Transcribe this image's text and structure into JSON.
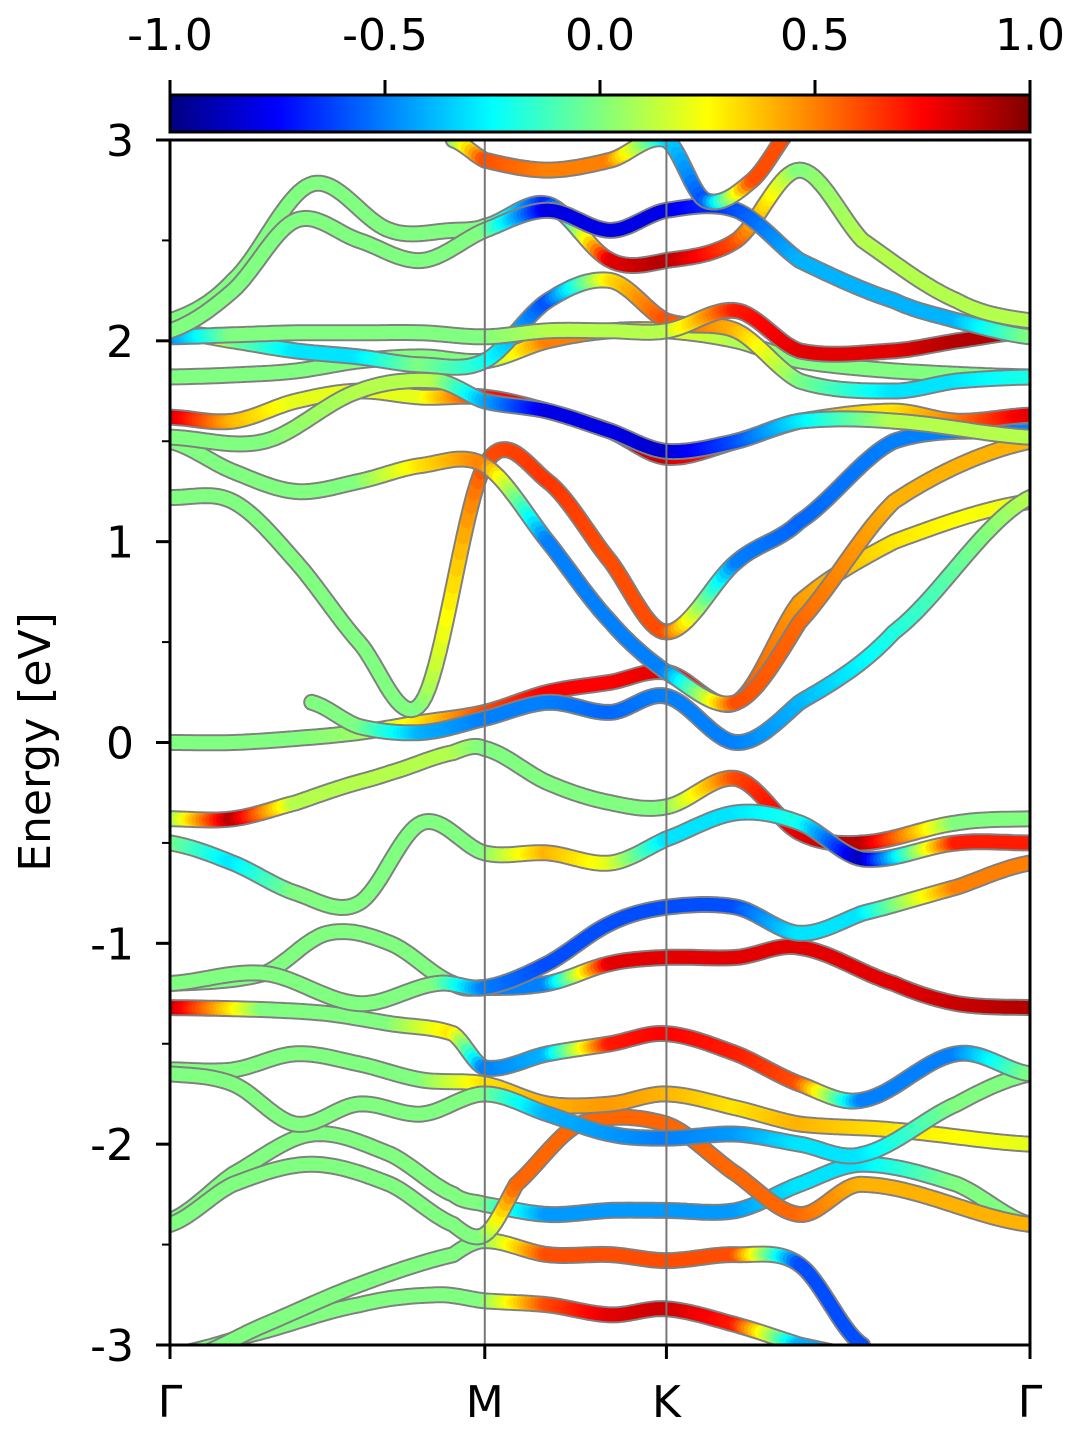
{
  "chart_data": {
    "type": "line",
    "ylabel": "Energy [eV]",
    "ylim": [
      -3,
      3
    ],
    "ytick_labels": [
      "3",
      "2",
      "1",
      "0",
      "-1",
      "-2",
      "-3"
    ],
    "yticks": [
      3,
      2,
      1,
      0,
      -1,
      -2,
      -3
    ],
    "x_kpoints": [
      {
        "label": "Γ",
        "pos": 0.0
      },
      {
        "label": "M",
        "pos": 1.0
      },
      {
        "label": "K",
        "pos": 1.577
      },
      {
        "label": "Γ",
        "pos": 2.732
      }
    ],
    "colorbar": {
      "range": [
        -1.0,
        1.0
      ],
      "tick_labels": [
        "-1.0",
        "-0.5",
        "0.0",
        "0.5",
        "1.0"
      ],
      "ticks": [
        -1.0,
        -0.5,
        0.0,
        0.5,
        1.0
      ],
      "colormap": "jet"
    },
    "grid": false,
    "bands": [
      {
        "x": [
          0,
          0.25,
          0.6,
          0.85,
          1.0,
          1.2,
          1.4,
          1.577,
          1.8,
          2.0,
          2.3,
          2.732
        ],
        "y": [
          -3.05,
          -2.95,
          -2.8,
          -2.75,
          -2.78,
          -2.8,
          -2.85,
          -2.82,
          -2.9,
          -3.0,
          -3.1,
          -3.2
        ],
        "c": [
          0.0,
          0.0,
          0.0,
          0.0,
          0.0,
          0.6,
          0.8,
          0.85,
          0.7,
          -0.4,
          -0.5,
          -0.5
        ]
      },
      {
        "x": [
          0,
          0.3,
          0.6,
          0.9,
          1.0,
          1.2,
          1.4,
          1.577,
          1.8,
          2.0,
          2.2
        ],
        "y": [
          -3.1,
          -2.9,
          -2.7,
          -2.55,
          -2.48,
          -2.55,
          -2.55,
          -2.58,
          -2.55,
          -2.6,
          -3.0
        ],
        "c": [
          0.0,
          0.0,
          0.0,
          0.0,
          0.0,
          0.6,
          0.6,
          0.6,
          0.6,
          -0.6,
          -0.6
        ]
      },
      {
        "x": [
          0,
          0.2,
          0.45,
          0.7,
          0.9,
          1.0,
          1.2,
          1.4,
          1.577,
          1.8,
          2.0,
          2.2,
          2.5,
          2.732
        ],
        "y": [
          -2.38,
          -2.15,
          -1.95,
          -2.05,
          -2.25,
          -2.3,
          -2.35,
          -2.33,
          -2.33,
          -2.33,
          -2.2,
          -2.1,
          -2.2,
          -2.4
        ],
        "c": [
          0.0,
          0.0,
          0.0,
          0.0,
          0.0,
          0.0,
          -0.45,
          -0.45,
          -0.45,
          -0.45,
          -0.3,
          -0.3,
          0.0,
          0.0
        ]
      },
      {
        "x": [
          0,
          0.2,
          0.45,
          0.7,
          0.9,
          1.0,
          1.1,
          1.3,
          1.577,
          1.8,
          2.0,
          2.2,
          2.732
        ],
        "y": [
          -2.4,
          -2.2,
          -2.1,
          -2.2,
          -2.4,
          -2.45,
          -2.2,
          -1.9,
          -1.9,
          -2.15,
          -2.35,
          -2.2,
          -2.4
        ],
        "c": [
          0.0,
          0.0,
          0.0,
          0.0,
          0.0,
          0.0,
          0.55,
          0.55,
          0.55,
          0.55,
          0.55,
          0.4,
          0.4
        ]
      },
      {
        "x": [
          0,
          0.2,
          0.4,
          0.6,
          0.8,
          1.0,
          1.2,
          1.4,
          1.577,
          1.8,
          2.0,
          2.3,
          2.732
        ],
        "y": [
          -1.63,
          -1.63,
          -1.55,
          -1.6,
          -1.68,
          -1.7,
          -1.8,
          -1.8,
          -1.75,
          -1.82,
          -1.9,
          -1.93,
          -2.0
        ],
        "c": [
          0.0,
          0.0,
          0.0,
          0.0,
          0.0,
          0.3,
          0.4,
          0.45,
          0.4,
          0.3,
          0.4,
          0.3,
          0.2
        ]
      },
      {
        "x": [
          0,
          0.2,
          0.4,
          0.6,
          0.8,
          1.0,
          1.2,
          1.4,
          1.577,
          1.8,
          2.0,
          2.2,
          2.5,
          2.732
        ],
        "y": [
          -1.65,
          -1.7,
          -1.9,
          -1.8,
          -1.85,
          -1.75,
          -1.85,
          -1.95,
          -1.97,
          -1.95,
          -2.0,
          -2.05,
          -1.8,
          -1.65
        ],
        "c": [
          0.0,
          0.0,
          0.0,
          0.0,
          0.0,
          0.0,
          -0.4,
          -0.45,
          -0.5,
          -0.45,
          -0.3,
          -0.3,
          0.0,
          0.0
        ]
      },
      {
        "x": [
          0,
          0.3,
          0.5,
          0.7,
          0.9,
          1.0,
          1.2,
          1.4,
          1.577,
          1.8,
          2.0,
          2.3,
          2.5,
          2.732
        ],
        "y": [
          -1.2,
          -1.15,
          -0.95,
          -1.0,
          -1.2,
          -1.22,
          -1.2,
          -1.1,
          -1.07,
          -1.07,
          -1.02,
          -1.2,
          -1.3,
          -1.32
        ],
        "c": [
          0.0,
          0.0,
          0.0,
          0.0,
          0.0,
          -0.5,
          -0.5,
          0.8,
          0.8,
          0.8,
          0.8,
          0.8,
          0.85,
          0.9
        ]
      },
      {
        "x": [
          0,
          0.3,
          0.5,
          0.7,
          0.9,
          1.0,
          1.2,
          1.4,
          1.577,
          1.8,
          2.0,
          2.2,
          2.5,
          2.732
        ],
        "y": [
          -1.32,
          -1.33,
          -1.35,
          -1.4,
          -1.45,
          -1.62,
          -1.55,
          -1.5,
          -1.45,
          -1.55,
          -1.7,
          -1.78,
          -1.55,
          -1.65
        ],
        "c": [
          0.9,
          0.0,
          0.0,
          0.0,
          0.3,
          -0.5,
          -0.4,
          0.7,
          0.75,
          0.7,
          0.6,
          -0.5,
          -0.5,
          0.0
        ]
      },
      {
        "x": [
          0,
          0.2,
          0.4,
          0.55,
          0.7,
          0.9,
          1.0,
          1.2,
          1.4,
          1.577,
          1.8,
          2.0,
          2.2,
          2.5,
          2.732
        ],
        "y": [
          -0.38,
          -0.38,
          -0.3,
          -0.22,
          -0.15,
          -0.05,
          -0.03,
          -0.2,
          -0.3,
          -0.32,
          -0.18,
          -0.45,
          -0.5,
          -0.4,
          -0.38
        ],
        "c": [
          0.0,
          0.9,
          0.1,
          0.1,
          0.1,
          0.1,
          0.0,
          0.0,
          0.0,
          0.0,
          0.6,
          0.8,
          0.9,
          0.0,
          0.0
        ]
      },
      {
        "x": [
          0,
          0.2,
          0.4,
          0.6,
          0.8,
          1.0,
          1.2,
          1.4,
          1.577,
          1.8,
          2.0,
          2.2,
          2.5,
          2.732
        ],
        "y": [
          -0.5,
          -0.6,
          -0.75,
          -0.8,
          -0.4,
          -0.55,
          -0.55,
          -0.6,
          -0.48,
          -0.35,
          -0.4,
          -0.58,
          -0.5,
          -0.5
        ],
        "c": [
          0.0,
          -0.3,
          0.0,
          0.0,
          0.0,
          0.0,
          0.4,
          0.2,
          -0.3,
          -0.3,
          -0.2,
          -0.9,
          0.7,
          0.7
        ]
      },
      {
        "x": [
          0,
          0.3,
          0.6,
          0.85,
          1.0,
          1.2,
          1.4,
          1.577,
          1.8,
          2.0,
          2.2,
          2.5,
          2.732
        ],
        "y": [
          -1.2,
          -1.15,
          -1.3,
          -1.2,
          -1.22,
          -1.1,
          -0.9,
          -0.82,
          -0.82,
          -0.95,
          -0.85,
          -0.72,
          -0.6
        ],
        "c": [
          0.0,
          0.0,
          0.0,
          0.0,
          -0.5,
          -0.6,
          -0.6,
          -0.6,
          -0.6,
          -0.3,
          -0.3,
          0.5,
          0.5
        ]
      },
      {
        "x": [
          0,
          0.2,
          0.4,
          0.6,
          0.8,
          1.0,
          1.2,
          1.4,
          1.577,
          1.8,
          2.0,
          2.3,
          2.732
        ],
        "y": [
          0.0,
          0.0,
          0.02,
          0.05,
          0.1,
          0.15,
          0.25,
          0.3,
          0.35,
          0.2,
          0.7,
          1.0,
          1.2
        ],
        "c": [
          0.0,
          0.0,
          0.0,
          0.05,
          0.3,
          0.6,
          0.75,
          0.75,
          0.8,
          0.6,
          0.45,
          0.3,
          0.2
        ]
      },
      {
        "x": [
          0.45,
          0.6,
          0.8,
          1.0,
          1.2,
          1.4,
          1.577,
          1.8,
          2.0,
          2.3,
          2.732
        ],
        "y": [
          0.2,
          0.08,
          0.05,
          0.12,
          0.2,
          0.15,
          0.23,
          0.0,
          0.2,
          0.55,
          1.22
        ],
        "c": [
          0.0,
          0.0,
          -0.4,
          -0.5,
          -0.5,
          -0.55,
          -0.5,
          -0.5,
          -0.4,
          -0.2,
          0.1
        ]
      },
      {
        "x": [
          0,
          0.2,
          0.4,
          0.6,
          0.8,
          1.0,
          1.2,
          1.4,
          1.577,
          1.8,
          2.0,
          2.3,
          2.732
        ],
        "y": [
          1.22,
          1.2,
          0.9,
          0.5,
          0.2,
          1.38,
          1.3,
          0.9,
          0.55,
          0.9,
          1.1,
          1.5,
          1.55
        ],
        "c": [
          0.0,
          0.0,
          0.0,
          0.0,
          0.0,
          0.6,
          0.65,
          0.6,
          0.6,
          -0.5,
          -0.55,
          -0.5,
          -0.5
        ]
      },
      {
        "x": [
          0,
          0.2,
          0.4,
          0.6,
          0.8,
          1.0,
          1.2,
          1.4,
          1.577,
          1.8,
          2.0,
          2.3,
          2.732
        ],
        "y": [
          1.5,
          1.35,
          1.25,
          1.3,
          1.38,
          1.38,
          1.0,
          0.6,
          0.35,
          0.2,
          0.6,
          1.2,
          1.5
        ],
        "c": [
          0.0,
          0.0,
          0.0,
          0.0,
          0.3,
          0.5,
          -0.5,
          -0.5,
          -0.5,
          0.6,
          0.55,
          0.4,
          0.4
        ]
      },
      {
        "x": [
          0,
          0.2,
          0.4,
          0.6,
          0.8,
          1.0,
          1.2,
          1.4,
          1.577,
          1.8,
          2.0,
          2.3,
          2.5,
          2.732
        ],
        "y": [
          1.62,
          1.6,
          1.7,
          1.75,
          1.72,
          1.72,
          1.65,
          1.55,
          1.42,
          1.5,
          1.6,
          1.65,
          1.6,
          1.63
        ],
        "c": [
          0.85,
          0.4,
          0.2,
          0.2,
          0.2,
          0.7,
          0.8,
          0.85,
          0.85,
          0.6,
          0.4,
          0.3,
          0.5,
          0.8
        ]
      },
      {
        "x": [
          0,
          0.3,
          0.6,
          0.85,
          1.0,
          1.2,
          1.4,
          1.577,
          1.8,
          2.0,
          2.3,
          2.732
        ],
        "y": [
          1.52,
          1.5,
          1.75,
          1.8,
          1.7,
          1.65,
          1.55,
          1.45,
          1.5,
          1.6,
          1.6,
          1.52
        ],
        "c": [
          0.0,
          0.0,
          0.1,
          0.1,
          -0.4,
          -0.8,
          -0.8,
          -0.85,
          -0.6,
          -0.3,
          0.1,
          0.1
        ]
      },
      {
        "x": [
          0,
          0.2,
          0.4,
          0.6,
          0.8,
          1.0,
          1.2,
          1.4,
          1.577,
          1.8,
          2.0,
          2.3,
          2.732
        ],
        "y": [
          1.82,
          1.83,
          1.85,
          1.9,
          1.92,
          1.9,
          2.0,
          2.05,
          2.05,
          2.0,
          1.9,
          1.85,
          1.82
        ],
        "c": [
          0.0,
          0.0,
          0.0,
          0.0,
          0.0,
          0.0,
          0.5,
          0.5,
          0.2,
          0.1,
          0.0,
          0.0,
          0.0
        ]
      },
      {
        "x": [
          0,
          0.2,
          0.4,
          0.6,
          0.8,
          1.0,
          1.2,
          1.4,
          1.577,
          1.8,
          2.0,
          2.3,
          2.5,
          2.732
        ],
        "y": [
          2.05,
          2.0,
          1.95,
          1.92,
          1.88,
          1.9,
          2.2,
          2.3,
          2.1,
          2.05,
          1.8,
          1.75,
          1.8,
          1.82
        ],
        "c": [
          0.9,
          0.0,
          -0.3,
          -0.3,
          0.0,
          -0.2,
          -0.6,
          0.3,
          0.6,
          0.4,
          0.0,
          -0.3,
          -0.3,
          -0.2
        ]
      },
      {
        "x": [
          0,
          0.2,
          0.4,
          0.6,
          0.8,
          1.0,
          1.2,
          1.4,
          1.577,
          1.8,
          2.0,
          2.3,
          2.5,
          2.732
        ],
        "y": [
          2.02,
          2.03,
          2.04,
          2.04,
          2.04,
          2.02,
          2.05,
          2.05,
          2.05,
          2.15,
          1.95,
          1.95,
          2.0,
          2.05
        ],
        "c": [
          -0.5,
          0.0,
          0.0,
          0.0,
          0.0,
          0.0,
          0.1,
          0.1,
          0.1,
          0.7,
          0.8,
          0.8,
          0.9,
          0.9
        ]
      },
      {
        "x": [
          0,
          0.2,
          0.45,
          0.7,
          0.9,
          1.0,
          1.2,
          1.4,
          1.577,
          1.8,
          2.0,
          2.2,
          2.5,
          2.732
        ],
        "y": [
          2.1,
          2.3,
          2.78,
          2.55,
          2.55,
          2.57,
          2.68,
          2.4,
          2.4,
          2.5,
          2.85,
          2.5,
          2.2,
          2.1
        ],
        "c": [
          0.0,
          0.0,
          0.0,
          0.0,
          0.0,
          0.0,
          -0.7,
          0.8,
          0.9,
          0.6,
          0.0,
          0.1,
          0.1,
          0.1
        ]
      },
      {
        "x": [
          0,
          0.2,
          0.4,
          0.6,
          0.8,
          1.0,
          1.2,
          1.4,
          1.577,
          1.8,
          2.0,
          2.3,
          2.5,
          2.732
        ],
        "y": [
          2.05,
          2.25,
          2.6,
          2.5,
          2.4,
          2.55,
          2.65,
          2.55,
          2.65,
          2.65,
          2.4,
          2.2,
          2.1,
          2.02
        ],
        "c": [
          0.0,
          0.0,
          0.0,
          0.0,
          0.0,
          0.0,
          -0.8,
          -0.8,
          -0.8,
          -0.6,
          -0.4,
          -0.4,
          -0.4,
          0.0
        ]
      },
      {
        "x": [
          0.9,
          1.0,
          1.2,
          1.4,
          1.577,
          1.7,
          1.85,
          2.0
        ],
        "y": [
          3.0,
          2.9,
          2.85,
          2.9,
          3.0,
          2.7,
          2.8,
          3.1
        ],
        "c": [
          0.0,
          0.6,
          0.5,
          0.5,
          -0.3,
          -0.6,
          0.6,
          0.6
        ]
      }
    ]
  }
}
